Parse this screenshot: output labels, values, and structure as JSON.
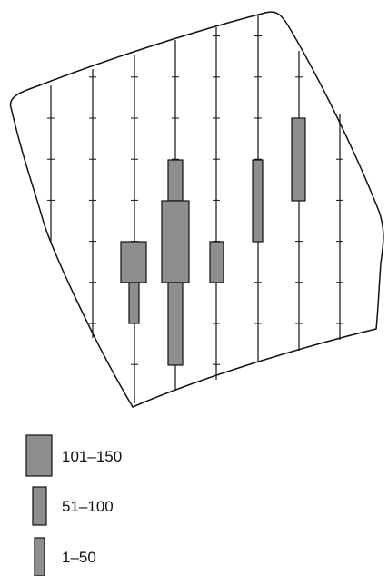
{
  "colors": {
    "line": "#111111",
    "fill": "#8e8e8e",
    "background": "#ffffff"
  },
  "legend": [
    {
      "label": "101–150",
      "class": "101-150"
    },
    {
      "label": "51–100",
      "class": "51-100"
    },
    {
      "label": "1–50",
      "class": "1-50"
    }
  ]
}
